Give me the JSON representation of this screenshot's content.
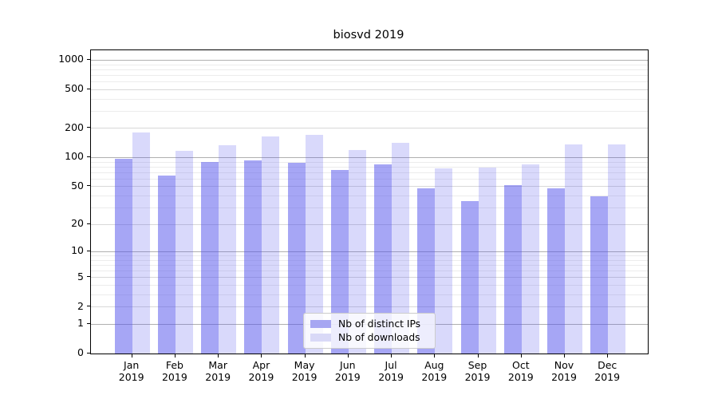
{
  "title": "biosvd 2019",
  "chart_data": {
    "type": "bar",
    "title": "biosvd 2019",
    "xlabel": "",
    "ylabel": "",
    "yscale": "log10(value+1)",
    "ylim": [
      0,
      1260
    ],
    "grid": true,
    "legend_position": "inside-bottom-center",
    "categories": [
      "Jan 2019",
      "Feb 2019",
      "Mar 2019",
      "Apr 2019",
      "May 2019",
      "Jun 2019",
      "Jul 2019",
      "Aug 2019",
      "Sep 2019",
      "Oct 2019",
      "Nov 2019",
      "Dec 2019"
    ],
    "yticks": [
      1000,
      500,
      200,
      100,
      50,
      20,
      10,
      5,
      2,
      1,
      0
    ],
    "series": [
      {
        "name": "Nb of distinct IPs",
        "color": "rgba(84,84,235,0.52)",
        "solid_color": "#a6a6f2",
        "values": [
          97,
          65,
          90,
          92,
          87,
          74,
          84,
          48,
          35,
          51,
          48,
          39
        ]
      },
      {
        "name": "Nb of downloads",
        "color": "rgba(84,84,235,0.22)",
        "solid_color": "#d9d9f7",
        "values": [
          180,
          116,
          134,
          165,
          170,
          118,
          140,
          77,
          78,
          85,
          136,
          136
        ]
      }
    ]
  },
  "colors": {
    "grid_decade": "#b0b0b0",
    "grid_major": "#d8d8d8",
    "grid_minor": "#ececec",
    "spine": "#000000",
    "background": "#ffffff"
  }
}
